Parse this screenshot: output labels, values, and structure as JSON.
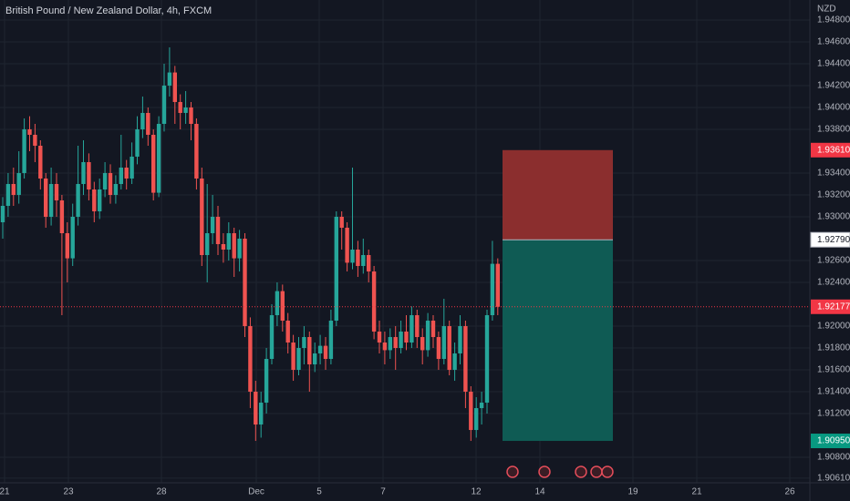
{
  "chart_data": {
    "type": "candlestick",
    "title": "British Pound / New Zealand Dollar, 4h, FXCM",
    "y_unit": "NZD",
    "up_color": "#26a69a",
    "down_color": "#ef5350",
    "grid": true,
    "ylim": [
      1.90567,
      1.94983
    ],
    "yticks": [
      {
        "value": 1.948,
        "label": "1.94800"
      },
      {
        "value": 1.946,
        "label": "1.94600"
      },
      {
        "value": 1.944,
        "label": "1.94400"
      },
      {
        "value": 1.942,
        "label": "1.94200"
      },
      {
        "value": 1.94,
        "label": "1.94000"
      },
      {
        "value": 1.938,
        "label": "1.93800"
      },
      {
        "value": 1.934,
        "label": "1.93400"
      },
      {
        "value": 1.932,
        "label": "1.93200"
      },
      {
        "value": 1.93,
        "label": "1.93000"
      },
      {
        "value": 1.926,
        "label": "1.92600"
      },
      {
        "value": 1.924,
        "label": "1.92400"
      },
      {
        "value": 1.92,
        "label": "1.92000"
      },
      {
        "value": 1.918,
        "label": "1.91800"
      },
      {
        "value": 1.916,
        "label": "1.91600"
      },
      {
        "value": 1.914,
        "label": "1.91400"
      },
      {
        "value": 1.912,
        "label": "1.91200"
      },
      {
        "value": 1.908,
        "label": "1.90800"
      },
      {
        "value": 1.9061,
        "label": "1.90610"
      }
    ],
    "x_labels": [
      "21",
      "23",
      "28",
      "Dec",
      "5",
      "7",
      "12",
      "14",
      "19",
      "21",
      "26"
    ],
    "open": [
      1.9295,
      1.931,
      1.933,
      1.932,
      1.934,
      1.938,
      1.9375,
      1.9365,
      1.9335,
      1.93,
      1.933,
      1.9315,
      1.9285,
      1.9262,
      1.93,
      1.933,
      1.935,
      1.9325,
      1.9305,
      1.9325,
      1.934,
      1.932,
      1.933,
      1.9345,
      1.9335,
      1.9355,
      1.938,
      1.9395,
      1.9375,
      1.9322,
      1.9385,
      1.942,
      1.9432,
      1.9405,
      1.9395,
      1.94,
      1.9385,
      1.9335,
      1.9265,
      1.9285,
      1.93,
      1.9275,
      1.927,
      1.9285,
      1.9262,
      1.928,
      1.92,
      1.914,
      1.911,
      1.913,
      1.917,
      1.921,
      1.9232,
      1.9205,
      1.9185,
      1.916,
      1.918,
      1.919,
      1.9165,
      1.9175,
      1.9182,
      1.917,
      1.9205,
      1.93,
      1.929,
      1.9258,
      1.927,
      1.9255,
      1.9265,
      1.925,
      1.9195,
      1.9185,
      1.9178,
      1.919,
      1.918,
      1.9195,
      1.9185,
      1.921,
      1.919,
      1.9178,
      1.9205,
      1.919,
      1.917,
      1.92,
      1.916,
      1.9175,
      1.92,
      1.914,
      1.9105,
      1.9125,
      1.913,
      1.921,
      1.9257
    ],
    "high": [
      1.9318,
      1.934,
      1.9345,
      1.936,
      1.939,
      1.9392,
      1.9385,
      1.937,
      1.934,
      1.9345,
      1.934,
      1.932,
      1.9295,
      1.9312,
      1.9365,
      1.937,
      1.9358,
      1.9332,
      1.9335,
      1.935,
      1.9348,
      1.9338,
      1.9375,
      1.9352,
      1.9368,
      1.9392,
      1.941,
      1.94,
      1.938,
      1.9392,
      1.944,
      1.9455,
      1.9438,
      1.9412,
      1.9415,
      1.9405,
      1.939,
      1.9345,
      1.933,
      1.932,
      1.931,
      1.9285,
      1.9295,
      1.929,
      1.9288,
      1.9285,
      1.9208,
      1.915,
      1.914,
      1.918,
      1.922,
      1.924,
      1.9238,
      1.9212,
      1.9192,
      1.919,
      1.92,
      1.9195,
      1.9185,
      1.9192,
      1.919,
      1.9215,
      1.9305,
      1.9305,
      1.9295,
      1.9345,
      1.9278,
      1.928,
      1.927,
      1.9255,
      1.9205,
      1.9195,
      1.9198,
      1.92,
      1.9205,
      1.921,
      1.9218,
      1.9215,
      1.9198,
      1.9212,
      1.921,
      1.9195,
      1.9225,
      1.9205,
      1.9185,
      1.921,
      1.9205,
      1.9145,
      1.9135,
      1.914,
      1.9215,
      1.9278,
      1.9262
    ],
    "low": [
      1.928,
      1.93,
      1.931,
      1.9312,
      1.9335,
      1.936,
      1.935,
      1.9325,
      1.929,
      1.9292,
      1.93,
      1.921,
      1.924,
      1.9255,
      1.9292,
      1.932,
      1.9315,
      1.9295,
      1.9298,
      1.9318,
      1.9312,
      1.9312,
      1.9325,
      1.9325,
      1.933,
      1.9348,
      1.9372,
      1.9365,
      1.9315,
      1.9318,
      1.9378,
      1.941,
      1.9385,
      1.938,
      1.9385,
      1.937,
      1.9325,
      1.9255,
      1.924,
      1.9275,
      1.9265,
      1.9258,
      1.926,
      1.9245,
      1.925,
      1.919,
      1.9125,
      1.9095,
      1.9098,
      1.912,
      1.9165,
      1.92,
      1.9195,
      1.9175,
      1.915,
      1.9155,
      1.9165,
      1.914,
      1.9158,
      1.9165,
      1.916,
      1.9165,
      1.92,
      1.927,
      1.925,
      1.9252,
      1.9245,
      1.9248,
      1.924,
      1.9188,
      1.9175,
      1.9165,
      1.917,
      1.916,
      1.9175,
      1.9178,
      1.918,
      1.918,
      1.9165,
      1.9172,
      1.918,
      1.916,
      1.9165,
      1.9155,
      1.915,
      1.9165,
      1.9125,
      1.9095,
      1.9098,
      1.911,
      1.912,
      1.9205,
      1.921
    ],
    "close": [
      1.931,
      1.933,
      1.932,
      1.934,
      1.938,
      1.9375,
      1.9365,
      1.9335,
      1.93,
      1.933,
      1.9315,
      1.9285,
      1.9262,
      1.93,
      1.933,
      1.935,
      1.9325,
      1.9305,
      1.9325,
      1.934,
      1.932,
      1.933,
      1.9345,
      1.9335,
      1.9355,
      1.938,
      1.9395,
      1.9375,
      1.9322,
      1.9385,
      1.942,
      1.9432,
      1.9405,
      1.9395,
      1.94,
      1.9385,
      1.9335,
      1.9265,
      1.9285,
      1.93,
      1.9275,
      1.927,
      1.9285,
      1.9262,
      1.928,
      1.92,
      1.914,
      1.911,
      1.913,
      1.917,
      1.921,
      1.9232,
      1.9205,
      1.9185,
      1.916,
      1.918,
      1.919,
      1.9165,
      1.9175,
      1.9182,
      1.917,
      1.9205,
      1.93,
      1.929,
      1.9258,
      1.927,
      1.9255,
      1.9265,
      1.925,
      1.9195,
      1.9185,
      1.9178,
      1.919,
      1.918,
      1.9195,
      1.9185,
      1.921,
      1.919,
      1.9178,
      1.9205,
      1.919,
      1.917,
      1.92,
      1.916,
      1.9175,
      1.92,
      1.914,
      1.9105,
      1.9125,
      1.913,
      1.921,
      1.9257,
      1.92177
    ],
    "position": {
      "stop": {
        "value": 1.9361,
        "label": "1.93610"
      },
      "entry": {
        "value": 1.9279,
        "label": "1.92790"
      },
      "target": {
        "value": 1.9095,
        "label": "1.90950"
      },
      "loss_color": "#8b2e2e",
      "profit_color": "#0f5b54"
    },
    "current_price": {
      "value": 1.92177,
      "label": "1.92177",
      "color": "#f23645"
    }
  }
}
